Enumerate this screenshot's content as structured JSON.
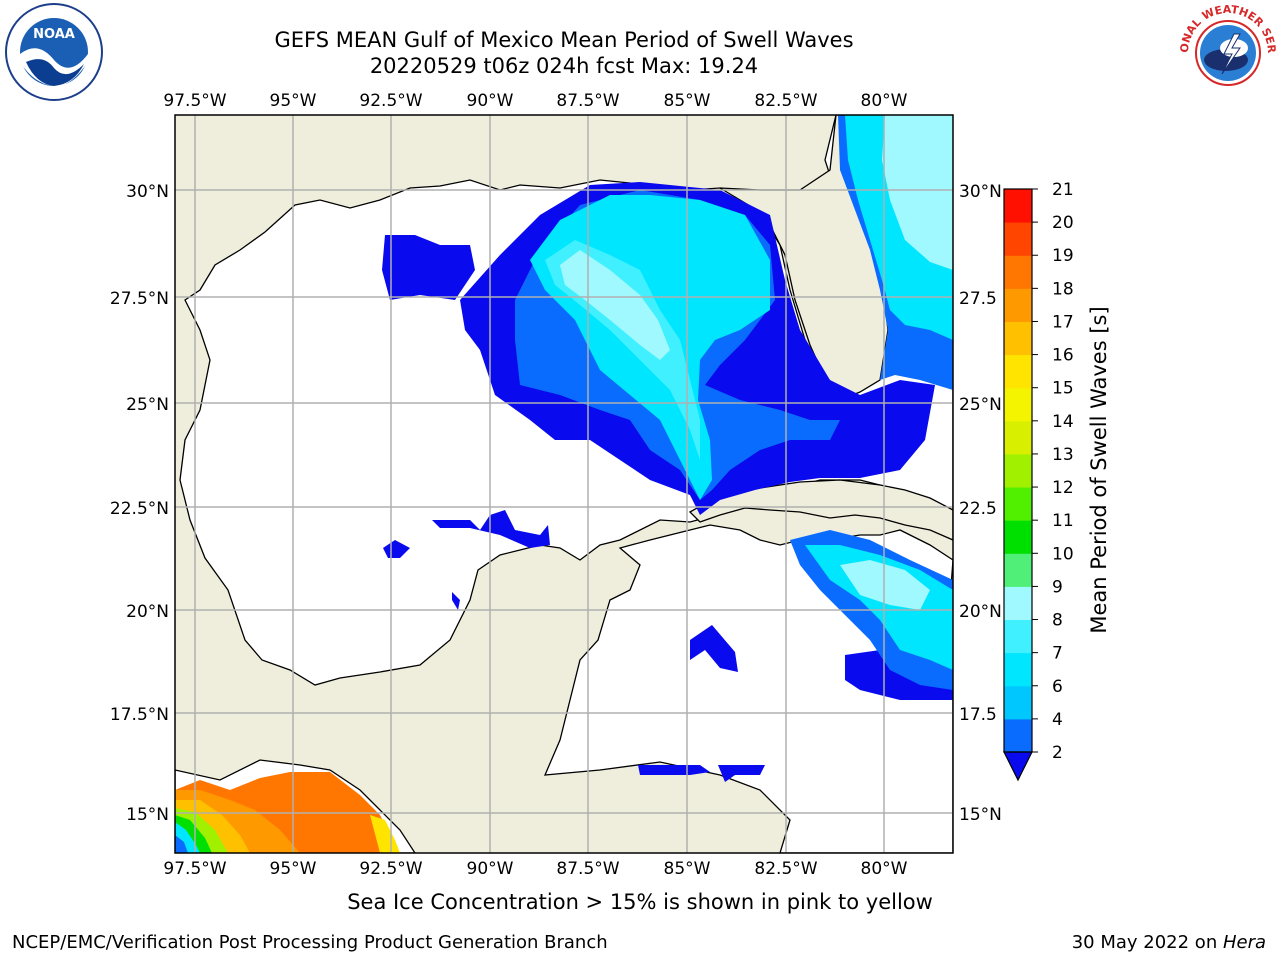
{
  "title": {
    "line1": "GEFS MEAN Gulf of Mexico Mean Period of Swell Waves",
    "line2": "20220529 t06z 024h fcst   Max: 19.24"
  },
  "logos": {
    "left": {
      "icon": "noaa-logo",
      "text": "NOAA"
    },
    "right": {
      "icon": "national-weather-service-logo",
      "text": "NATIONAL WEATHER SERVICE"
    }
  },
  "map": {
    "lon_ticks": [
      "97.5°W",
      "95°W",
      "92.5°W",
      "90°W",
      "87.5°W",
      "85°W",
      "82.5°W",
      "80°W"
    ],
    "lat_ticks_left": [
      "30°N",
      "27.5°N",
      "25°N",
      "22.5°N",
      "20°N",
      "17.5°N",
      "15°N"
    ],
    "lat_ticks_right": [
      "30°N",
      "27.5",
      "25°N",
      "22.5",
      "20°N",
      "17.5",
      "15°N"
    ],
    "land_color": "#efeedd",
    "grid_color": "#b0b0b0"
  },
  "colorbar": {
    "label": "Mean Period of Swell Waves [s]",
    "ticks": [
      "2",
      "4",
      "6",
      "7",
      "8",
      "9",
      "10",
      "11",
      "12",
      "13",
      "14",
      "15",
      "16",
      "17",
      "18",
      "19",
      "20",
      "21"
    ],
    "colors": [
      "#0a0aef",
      "#0a6cff",
      "#00c8ff",
      "#00e6ff",
      "#40f0ff",
      "#9ff9ff",
      "#50f078",
      "#00e000",
      "#50f000",
      "#a0f000",
      "#d8f000",
      "#f4f400",
      "#ffe400",
      "#ffc000",
      "#ff9900",
      "#ff7700",
      "#ff4500",
      "#ff1000",
      "#ff0000"
    ]
  },
  "footer": {
    "note": "Sea Ice Concentration > 15% is shown in pink to yellow",
    "org": "NCEP/EMC/Verification Post Processing Product Generation Branch",
    "date": "30 May 2022 on ",
    "host": "Hera"
  }
}
